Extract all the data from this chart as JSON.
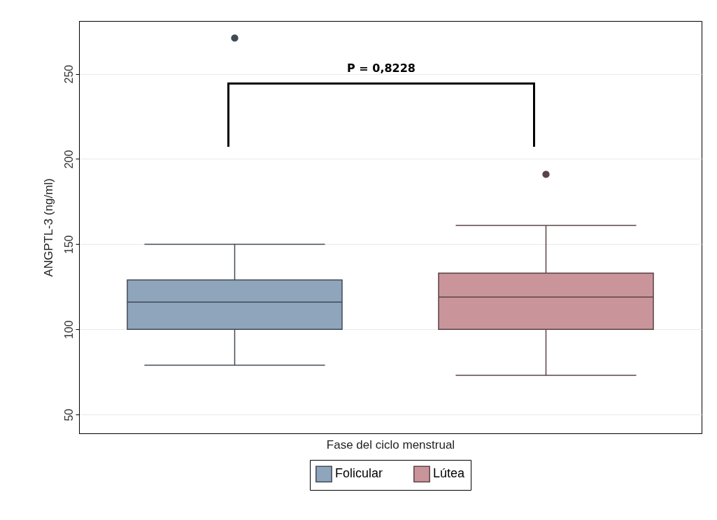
{
  "chart_data": {
    "type": "box",
    "xlabel": "Fase del ciclo menstrual",
    "ylabel": "ANGPTL-3 (ng/ml)",
    "categories": [
      null
    ],
    "series": [
      {
        "name": "Folicular",
        "color": "#8ea5bc",
        "boxes": [
          {
            "low": 79,
            "q1": 100,
            "median": 116,
            "q3": 129,
            "high": 150,
            "outliers": [
              271
            ]
          }
        ]
      },
      {
        "name": "Lútea",
        "color": "#c9959b",
        "boxes": [
          {
            "low": 73,
            "q1": 100,
            "median": 119,
            "q3": 133,
            "high": 161,
            "outliers": [
              191
            ]
          }
        ]
      }
    ],
    "ylim": [
      39,
      281
    ],
    "yticks": [
      50,
      100,
      150,
      200,
      250
    ],
    "grid": "y",
    "legend": "bottom",
    "annotations": [
      "P = 0,8228"
    ]
  }
}
